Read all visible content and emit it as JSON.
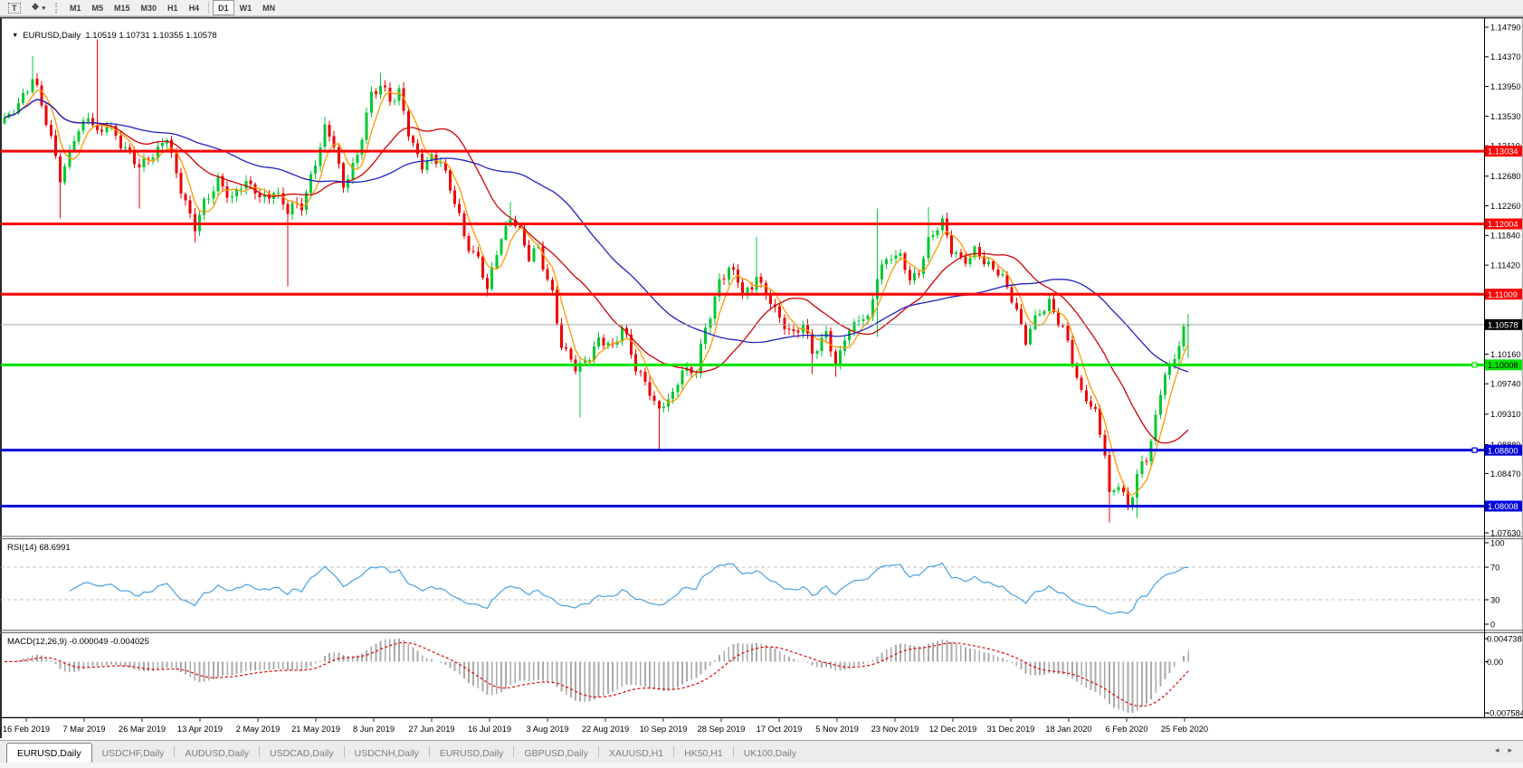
{
  "icons": {
    "collapse": "▼",
    "studies": "❖",
    "caret": "▾",
    "tab_prev": "◂",
    "tab_next": "▸"
  },
  "toolbar": {
    "text_tool_label": "T",
    "timeframes": [
      "M1",
      "M5",
      "M15",
      "M30",
      "H1",
      "H4",
      "D1",
      "W1",
      "MN"
    ],
    "active_timeframe": "D1",
    "divider_before": "D1"
  },
  "chart_data": {
    "type": "candlestick",
    "symbol": "EURUSD",
    "timeframe": "Daily",
    "title": "EURUSD,Daily  1.10519 1.10731 1.10355 1.10578",
    "current_ohlc": {
      "open": 1.10519,
      "high": 1.10731,
      "low": 1.10355,
      "close": 1.10578
    },
    "price_axis": {
      "max": 1.1479,
      "min": 1.0763,
      "ticks": [
        "1.14790",
        "1.14370",
        "1.13950",
        "1.13530",
        "1.13110",
        "1.12680",
        "1.12260",
        "1.11840",
        "1.11420",
        "1.10160",
        "1.09740",
        "1.09310",
        "1.08880",
        "1.08470",
        "1.07630"
      ]
    },
    "levels": [
      {
        "label": "1.13034",
        "price": 1.13034,
        "color": "#ff0000",
        "width": 3,
        "label_bg": "#ff0000",
        "label_fg": "#ffffff",
        "handle": false
      },
      {
        "label": "1.12004",
        "price": 1.12004,
        "color": "#ff0000",
        "width": 3,
        "label_bg": "#ff0000",
        "label_fg": "#ffffff",
        "handle": false
      },
      {
        "label": "1.11009",
        "price": 1.11009,
        "color": "#ff0000",
        "width": 3,
        "label_bg": "#ff0000",
        "label_fg": "#ffffff",
        "handle": false
      },
      {
        "label": "1.10578",
        "price": 1.10578,
        "color": "#a8a8a8",
        "width": 1,
        "label_bg": "#000000",
        "label_fg": "#ffffff",
        "handle": false
      },
      {
        "label": "1.10008",
        "price": 1.10008,
        "color": "#00e400",
        "width": 3,
        "label_bg": "#00e400",
        "label_fg": "#000000",
        "handle": true
      },
      {
        "label": "1.08800",
        "price": 1.088,
        "color": "#0000dc",
        "width": 3,
        "label_bg": "#0000dc",
        "label_fg": "#ffffff",
        "handle": true
      },
      {
        "label": "1.08008",
        "price": 1.08008,
        "color": "#0000dc",
        "width": 3,
        "label_bg": "#0000dc",
        "label_fg": "#ffffff",
        "handle": false
      }
    ],
    "moving_averages": [
      {
        "name": "ma-fast",
        "period": 5,
        "color": "#ff9900"
      },
      {
        "name": "ma-medium",
        "period": 20,
        "color": "#d00000"
      },
      {
        "name": "ma-slow",
        "period": 45,
        "color": "#2020c0"
      }
    ],
    "candles": {
      "count": 256,
      "up_color": "#00c832",
      "down_color": "#ee0000",
      "keypoints": [
        [
          0,
          1.1345
        ],
        [
          3,
          1.1372
        ],
        [
          6,
          1.1408
        ],
        [
          9,
          1.1345
        ],
        [
          12,
          1.1268
        ],
        [
          15,
          1.132
        ],
        [
          18,
          1.135
        ],
        [
          20,
          1.133
        ],
        [
          22,
          1.1345
        ],
        [
          26,
          1.1302
        ],
        [
          29,
          1.1285
        ],
        [
          32,
          1.13
        ],
        [
          35,
          1.1318
        ],
        [
          38,
          1.125
        ],
        [
          41,
          1.1198
        ],
        [
          43,
          1.1225
        ],
        [
          46,
          1.1262
        ],
        [
          49,
          1.124
        ],
        [
          52,
          1.1258
        ],
        [
          55,
          1.1238
        ],
        [
          58,
          1.1248
        ],
        [
          61,
          1.1218
        ],
        [
          64,
          1.1228
        ],
        [
          67,
          1.1288
        ],
        [
          69,
          1.1335
        ],
        [
          71,
          1.1308
        ],
        [
          73,
          1.1255
        ],
        [
          76,
          1.13
        ],
        [
          79,
          1.1378
        ],
        [
          81,
          1.1398
        ],
        [
          83,
          1.1378
        ],
        [
          85,
          1.139
        ],
        [
          87,
          1.1325
        ],
        [
          90,
          1.128
        ],
        [
          92,
          1.13
        ],
        [
          94,
          1.1288
        ],
        [
          97,
          1.123
        ],
        [
          99,
          1.1182
        ],
        [
          102,
          1.1152
        ],
        [
          104,
          1.1108
        ],
        [
          107,
          1.1178
        ],
        [
          109,
          1.1212
        ],
        [
          111,
          1.1192
        ],
        [
          113,
          1.1152
        ],
        [
          115,
          1.1162
        ],
        [
          118,
          1.1102
        ],
        [
          120,
          1.1032
        ],
        [
          123,
          1.0992
        ],
        [
          126,
          1.1012
        ],
        [
          128,
          1.1042
        ],
        [
          131,
          1.1022
        ],
        [
          133,
          1.1052
        ],
        [
          136,
          1.1002
        ],
        [
          139,
          1.0962
        ],
        [
          141,
          1.0932
        ],
        [
          144,
          1.0962
        ],
        [
          146,
          1.0996
        ],
        [
          149,
          1.099
        ],
        [
          151,
          1.105
        ],
        [
          154,
          1.112
        ],
        [
          156,
          1.1142
        ],
        [
          159,
          1.1102
        ],
        [
          161,
          1.1108
        ],
        [
          162,
          1.113
        ],
        [
          165,
          1.1092
        ],
        [
          167,
          1.1062
        ],
        [
          170,
          1.1042
        ],
        [
          172,
          1.1066
        ],
        [
          174,
          1.1016
        ],
        [
          177,
          1.1042
        ],
        [
          179,
          1.1002
        ],
        [
          181,
          1.1042
        ],
        [
          184,
          1.1066
        ],
        [
          186,
          1.106
        ],
        [
          188,
          1.113
        ],
        [
          191,
          1.116
        ],
        [
          193,
          1.115
        ],
        [
          195,
          1.112
        ],
        [
          197,
          1.1132
        ],
        [
          199,
          1.1182
        ],
        [
          202,
          1.12
        ],
        [
          204,
          1.1162
        ],
        [
          206,
          1.115
        ],
        [
          209,
          1.1162
        ],
        [
          211,
          1.1146
        ],
        [
          213,
          1.1132
        ],
        [
          215,
          1.113
        ],
        [
          218,
          1.1078
        ],
        [
          220,
          1.1032
        ],
        [
          223,
          1.1078
        ],
        [
          225,
          1.109
        ],
        [
          228,
          1.1052
        ],
        [
          230,
          1.1002
        ],
        [
          232,
          1.0962
        ],
        [
          235,
          1.0938
        ],
        [
          237,
          1.0872
        ],
        [
          238,
          1.0812
        ],
        [
          240,
          1.0832
        ],
        [
          242,
          1.08
        ],
        [
          244,
          1.0848
        ],
        [
          246,
          1.0866
        ],
        [
          248,
          1.0922
        ],
        [
          250,
          1.0992
        ],
        [
          252,
          1.1012
        ],
        [
          254,
          1.1052
        ],
        [
          255,
          1.10578
        ]
      ],
      "spikes": [
        {
          "i": 6,
          "high": 1.1438
        },
        {
          "i": 12,
          "low": 1.1208
        },
        {
          "i": 20,
          "high": 1.1462
        },
        {
          "i": 29,
          "low": 1.1222
        },
        {
          "i": 41,
          "low": 1.1174
        },
        {
          "i": 61,
          "low": 1.1112
        },
        {
          "i": 69,
          "high": 1.1352
        },
        {
          "i": 81,
          "high": 1.1414
        },
        {
          "i": 104,
          "low": 1.1098
        },
        {
          "i": 109,
          "high": 1.1232
        },
        {
          "i": 124,
          "low": 1.0926
        },
        {
          "i": 141,
          "low": 1.0879
        },
        {
          "i": 162,
          "high": 1.1182
        },
        {
          "i": 174,
          "low": 1.0988
        },
        {
          "i": 179,
          "low": 1.0984
        },
        {
          "i": 188,
          "high": 1.1222,
          "low": 1.104
        },
        {
          "i": 199,
          "high": 1.1224
        },
        {
          "i": 238,
          "low": 1.0778
        },
        {
          "i": 244,
          "low": 1.0784
        },
        {
          "i": 255,
          "high": 1.1073,
          "low": 1.101
        }
      ]
    },
    "rsi": {
      "label": "RSI(14) 68.6991",
      "period": 14,
      "value": 68.6991,
      "line_color": "#4aa0e0",
      "scale_labels": [
        "100",
        "70",
        "30",
        "0"
      ],
      "dashed_levels": [
        70,
        30
      ]
    },
    "macd": {
      "label": "MACD(12,26,9) -0.000049 -0.004025",
      "fast": 12,
      "slow": 26,
      "signal": 9,
      "main_value": -4.9e-05,
      "signal_value": -0.004025,
      "bar_color": "#aaaaaa",
      "signal_color": "#e00000",
      "scale_labels": {
        "max": "0.004738",
        "zero": "0.00",
        "min": "-0.007584"
      }
    },
    "dates": [
      "16 Feb 2019",
      "7 Mar 2019",
      "26 Mar 2019",
      "13 Apr 2019",
      "2 May 2019",
      "21 May 2019",
      "8 Jun 2019",
      "27 Jun 2019",
      "16 Jul 2019",
      "3 Aug 2019",
      "22 Aug 2019",
      "10 Sep 2019",
      "28 Sep 2019",
      "17 Oct 2019",
      "5 Nov 2019",
      "23 Nov 2019",
      "12 Dec 2019",
      "31 Dec 2019",
      "18 Jan 2020",
      "6 Feb 2020",
      "25 Feb 2020"
    ]
  },
  "tabs": {
    "active_index": 0,
    "items": [
      "EURUSD,Daily",
      "USDCHF,Daily",
      "AUDUSD,Daily",
      "USDCAD,Daily",
      "USDCNH,Daily",
      "EURUSD,Daily",
      "GBPUSD,Daily",
      "XAUUSD,H1",
      "HK50,H1",
      "UK100,Daily"
    ]
  }
}
